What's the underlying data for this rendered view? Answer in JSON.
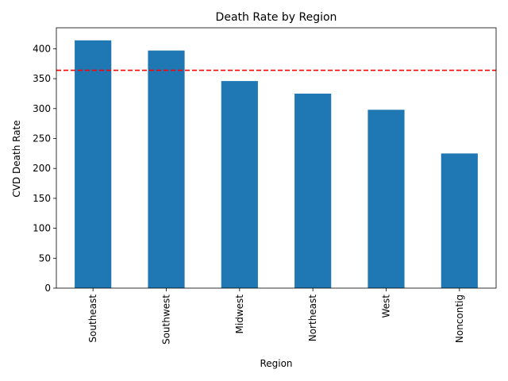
{
  "chart_data": {
    "type": "bar",
    "title": "Death Rate by Region",
    "xlabel": "Region",
    "ylabel": "CVD Death Rate",
    "categories": [
      "Southeast",
      "Southwest",
      "Midwest",
      "Northeast",
      "West",
      "Noncontig"
    ],
    "values": [
      414,
      397,
      346,
      325,
      298,
      225
    ],
    "ylim": [
      0,
      435
    ],
    "yticks": [
      0,
      50,
      100,
      150,
      200,
      250,
      300,
      350,
      400
    ],
    "reference_line": {
      "value": 364,
      "color": "#ff0000",
      "style": "dashed"
    },
    "bar_color": "#1f77b4",
    "grid": false,
    "legend": "none"
  }
}
